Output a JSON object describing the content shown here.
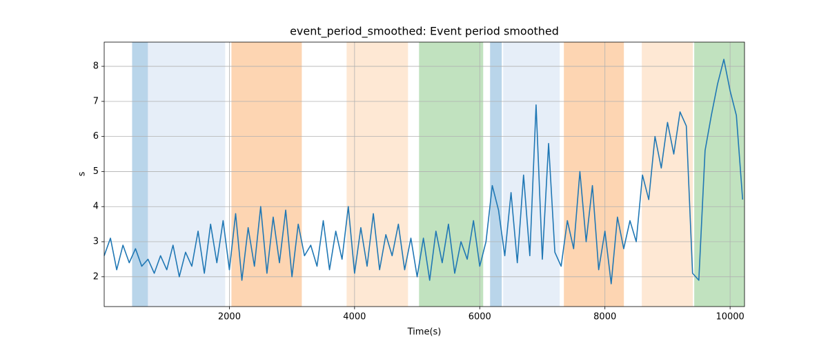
{
  "chart_data": {
    "type": "line",
    "title": "event_period_smoothed: Event period smoothed",
    "x_label": "Time(s)",
    "y_label": "s",
    "xlim": [
      0,
      10230
    ],
    "ylim": [
      1.15,
      8.69
    ],
    "xticks": [
      2000,
      4000,
      6000,
      8000,
      10000
    ],
    "yticks": [
      2,
      3,
      4,
      5,
      6,
      7,
      8
    ],
    "grid": true,
    "spans": [
      {
        "x0": 446,
        "x1": 699,
        "color": "#b9d5ea"
      },
      {
        "x0": 699,
        "x1": 1933,
        "color": "#e6eef8"
      },
      {
        "x0": 2033,
        "x1": 3157,
        "color": "#fdd5b2"
      },
      {
        "x0": 3873,
        "x1": 4854,
        "color": "#fee8d4"
      },
      {
        "x0": 5030,
        "x1": 6055,
        "color": "#c1e2bf"
      },
      {
        "x0": 6165,
        "x1": 6352,
        "color": "#b9d5ea"
      },
      {
        "x0": 6374,
        "x1": 7278,
        "color": "#e6eef8"
      },
      {
        "x0": 7344,
        "x1": 8303,
        "color": "#fdd5b2"
      },
      {
        "x0": 8589,
        "x1": 9405,
        "color": "#fee8d4"
      },
      {
        "x0": 9427,
        "x1": 10230,
        "color": "#c1e2bf"
      }
    ],
    "x": [
      0,
      100,
      200,
      300,
      400,
      500,
      600,
      700,
      800,
      900,
      1000,
      1100,
      1200,
      1300,
      1400,
      1500,
      1600,
      1700,
      1800,
      1900,
      2000,
      2100,
      2200,
      2300,
      2400,
      2500,
      2600,
      2700,
      2800,
      2900,
      3000,
      3100,
      3200,
      3300,
      3400,
      3500,
      3600,
      3700,
      3800,
      3900,
      4000,
      4100,
      4200,
      4300,
      4400,
      4500,
      4600,
      4700,
      4800,
      4900,
      5000,
      5100,
      5200,
      5300,
      5400,
      5500,
      5600,
      5700,
      5800,
      5900,
      6000,
      6100,
      6200,
      6300,
      6400,
      6500,
      6600,
      6700,
      6800,
      6900,
      7000,
      7100,
      7200,
      7300,
      7400,
      7500,
      7600,
      7700,
      7800,
      7900,
      8000,
      8100,
      8200,
      8300,
      8400,
      8500,
      8600,
      8700,
      8800,
      8900,
      9000,
      9100,
      9200,
      9300,
      9400,
      9500,
      9600,
      9700,
      9800,
      9900,
      10000,
      10100,
      10200
    ],
    "series": [
      {
        "color": "#1f77b4",
        "values": [
          2.6,
          3.1,
          2.2,
          2.9,
          2.4,
          2.8,
          2.3,
          2.5,
          2.1,
          2.6,
          2.2,
          2.9,
          2.0,
          2.7,
          2.3,
          3.3,
          2.1,
          3.5,
          2.4,
          3.6,
          2.2,
          3.8,
          1.9,
          3.4,
          2.3,
          4.0,
          2.1,
          3.7,
          2.4,
          3.9,
          2.0,
          3.5,
          2.6,
          2.9,
          2.3,
          3.6,
          2.2,
          3.3,
          2.5,
          4.0,
          2.1,
          3.4,
          2.3,
          3.8,
          2.2,
          3.2,
          2.6,
          3.5,
          2.2,
          3.1,
          2.0,
          3.1,
          1.9,
          3.3,
          2.4,
          3.5,
          2.1,
          3.0,
          2.5,
          3.6,
          2.3,
          3.0,
          4.6,
          3.9,
          2.6,
          4.4,
          2.4,
          4.9,
          2.6,
          6.9,
          2.5,
          5.8,
          2.7,
          2.3,
          3.6,
          2.8,
          5.0,
          3.0,
          4.6,
          2.2,
          3.3,
          1.8,
          3.7,
          2.8,
          3.6,
          3.0,
          4.9,
          4.2,
          6.0,
          5.1,
          6.4,
          5.5,
          6.7,
          6.3,
          2.1,
          1.9,
          5.6,
          6.6,
          7.5,
          8.2,
          7.3,
          6.6,
          4.2
        ]
      }
    ]
  }
}
